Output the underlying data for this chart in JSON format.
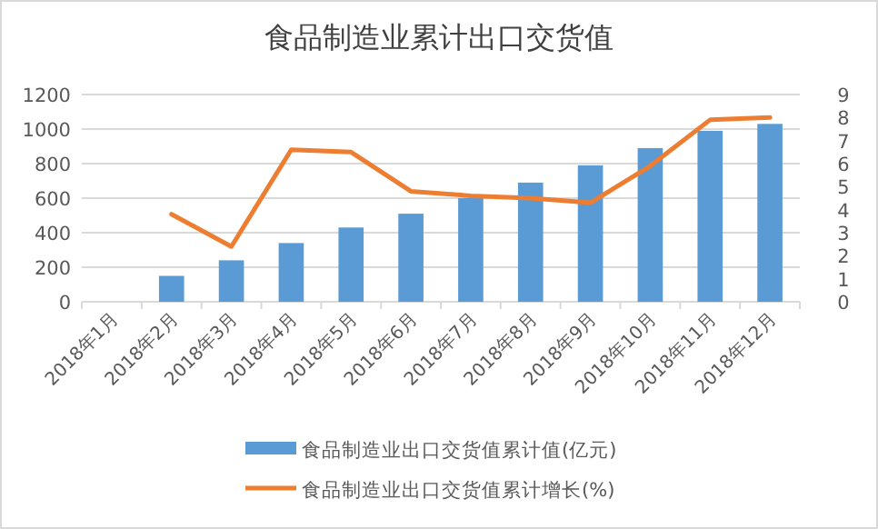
{
  "chart_data": {
    "type": "bar",
    "title": "食品制造业累计出口交货值",
    "categories": [
      "2018年1月",
      "2018年2月",
      "2018年3月",
      "2018年4月",
      "2018年5月",
      "2018年6月",
      "2018年7月",
      "2018年8月",
      "2018年9月",
      "2018年10月",
      "2018年11月",
      "2018年12月"
    ],
    "series": [
      {
        "name": "食品制造业出口交货值累计值(亿元)",
        "color": "#5b9bd5",
        "values": [
          null,
          150,
          240,
          340,
          430,
          510,
          600,
          690,
          790,
          890,
          990,
          1030
        ]
      },
      {
        "name": "食品制造业出口交货值累计增长(%)",
        "type": "line",
        "axis": "y2",
        "color": "#ed7d31",
        "values": [
          null,
          3.8,
          2.4,
          6.6,
          6.5,
          4.8,
          4.6,
          4.5,
          4.3,
          5.9,
          7.9,
          8
        ]
      }
    ],
    "ylim": [
      0,
      1200
    ],
    "yticks": [
      0,
      200,
      400,
      600,
      800,
      1000,
      1200
    ],
    "y2lim": [
      0,
      9
    ],
    "y2ticks": [
      0,
      1,
      2,
      3,
      4,
      5,
      6,
      7,
      8,
      9
    ],
    "grid": "y",
    "legend": "bottom"
  }
}
